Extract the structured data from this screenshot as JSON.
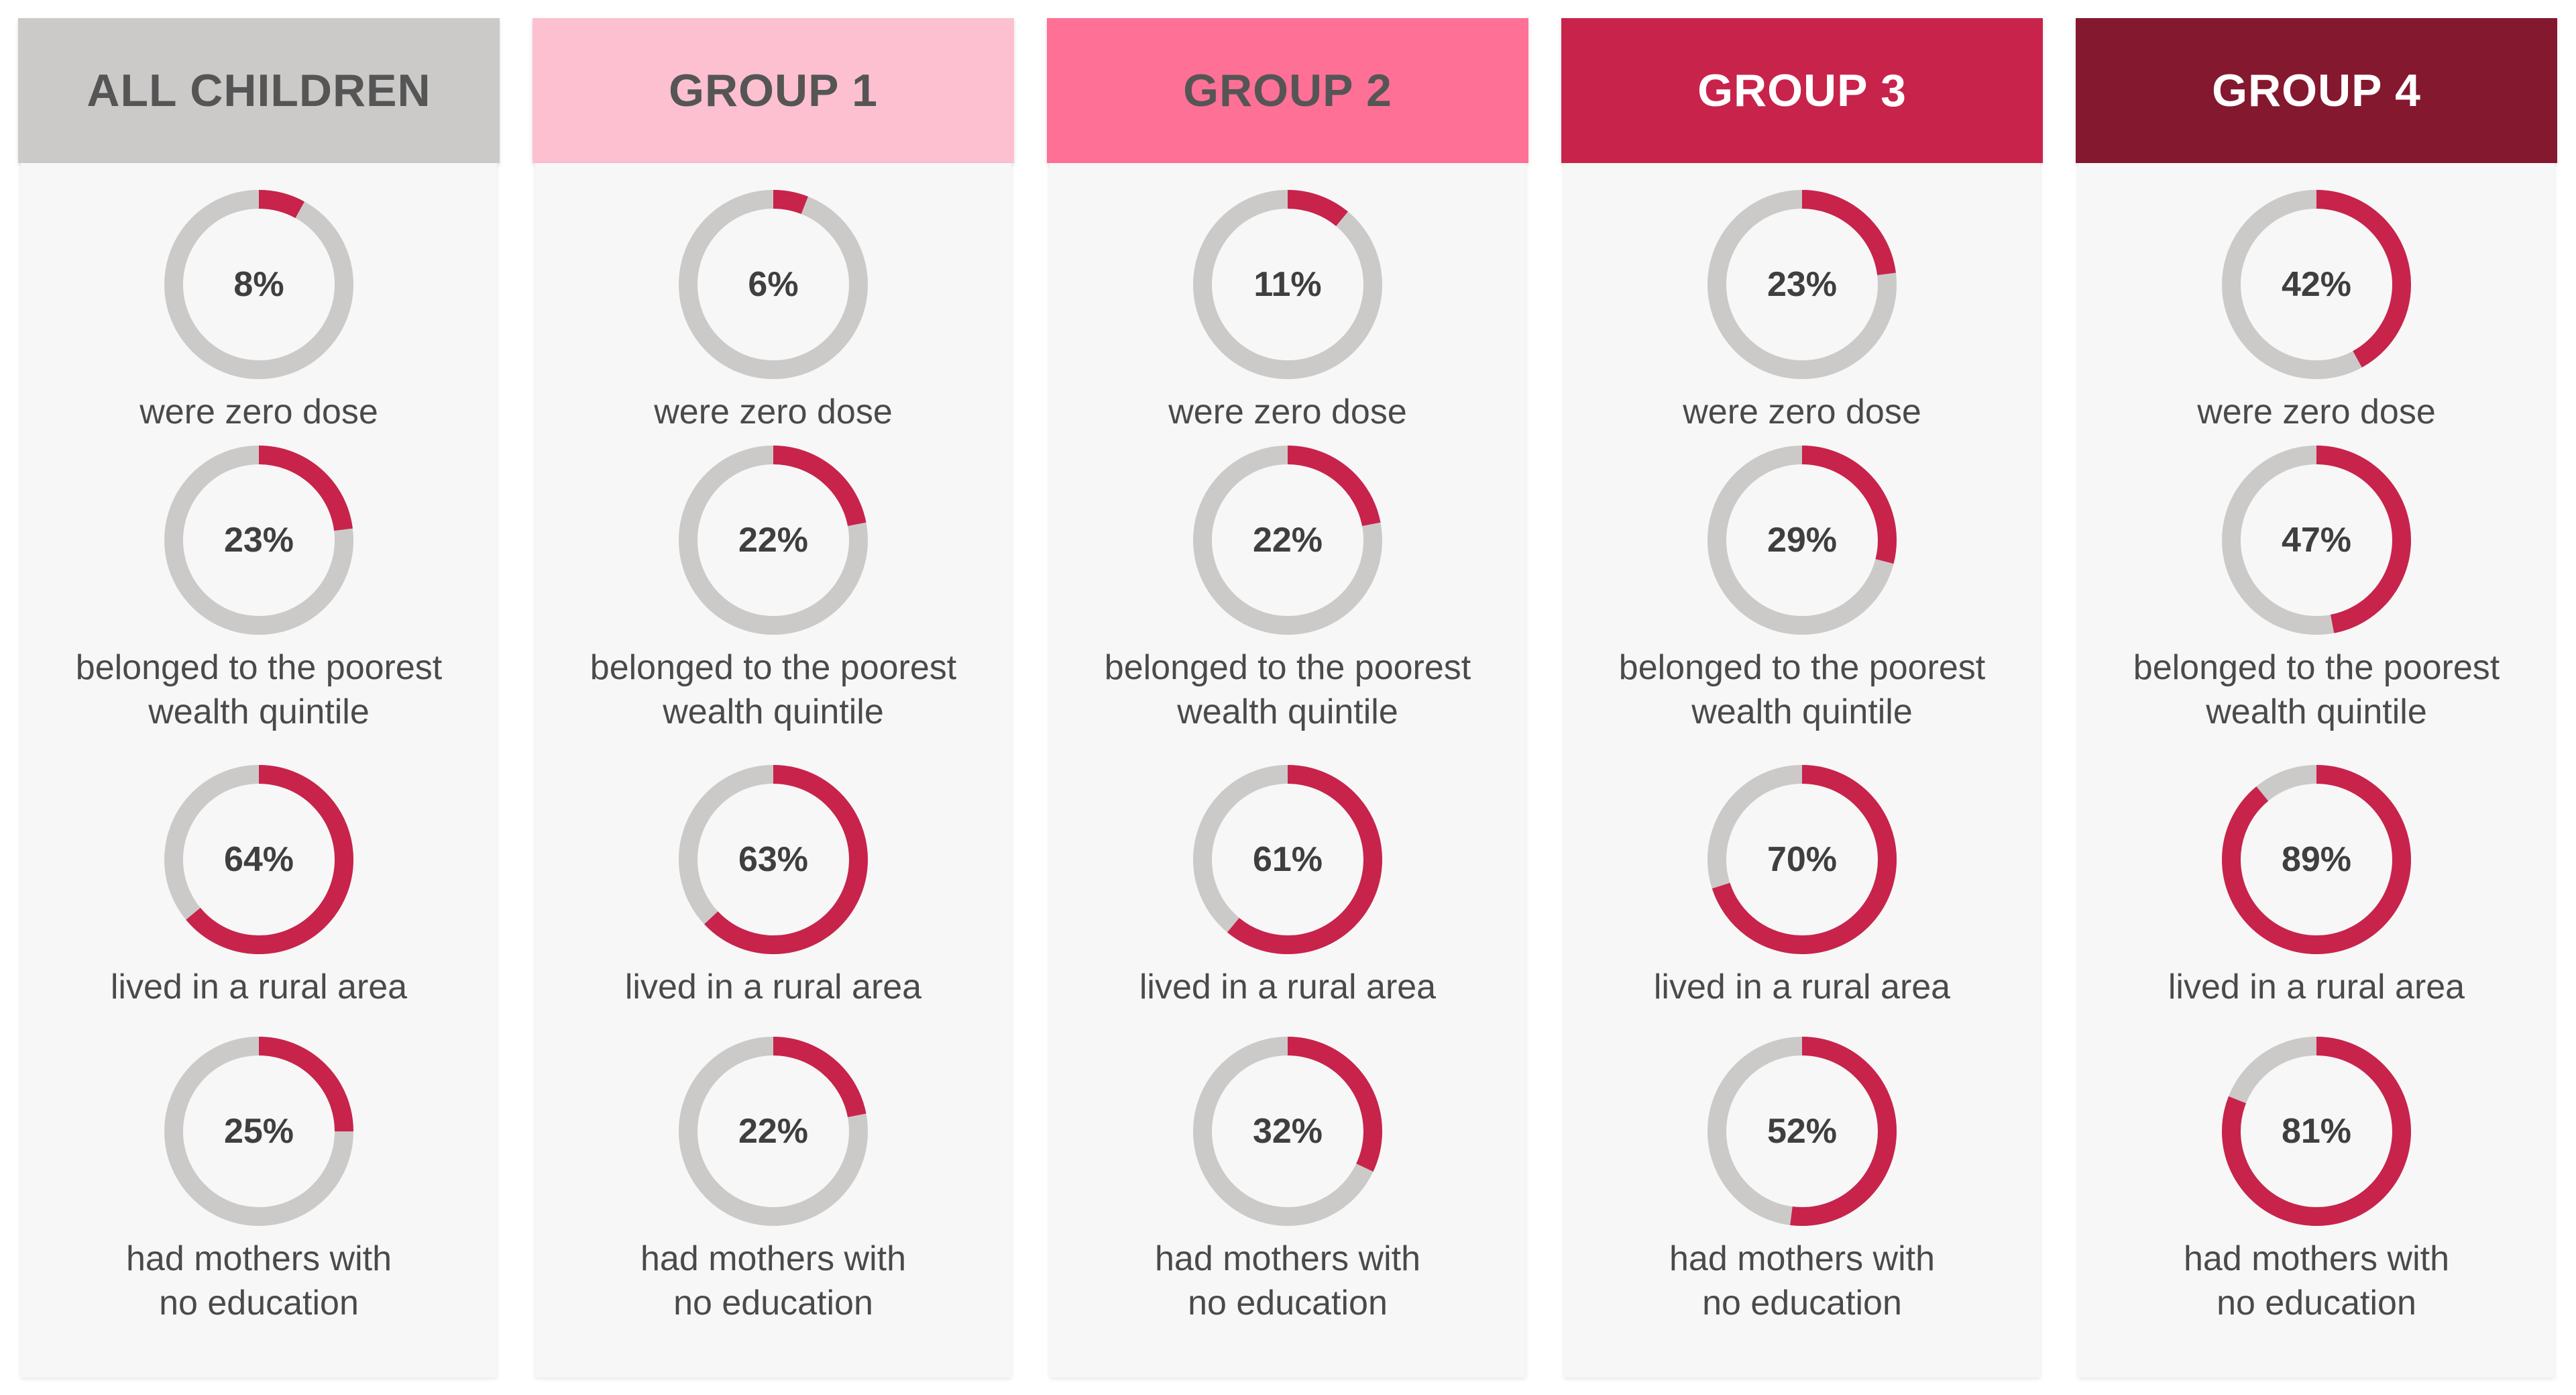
{
  "colors": {
    "track": "#cbcac9",
    "fill": "#c8234b",
    "text_dark": "#555555",
    "text_light": "#ffffff"
  },
  "metric_labels": {
    "zero_dose": "were zero dose",
    "poorest_line1": "belonged to the poorest",
    "poorest_line2": "wealth quintile",
    "rural": "lived in a rural area",
    "education_line1": "had mothers with",
    "education_line2": "no education"
  },
  "chart_data": {
    "type": "donut-grid",
    "series": [
      {
        "name": "ALL CHILDREN",
        "header_color": "#cbcac9",
        "header_text_color": "#555555",
        "values": {
          "zero_dose": 8,
          "poorest": 23,
          "rural": 64,
          "education": 25
        },
        "labels": {
          "zero_dose": "8%",
          "poorest": "23%",
          "rural": "64%",
          "education": "25%"
        }
      },
      {
        "name": "GROUP 1",
        "header_color": "#fcc0d1",
        "header_text_color": "#555555",
        "values": {
          "zero_dose": 6,
          "poorest": 22,
          "rural": 63,
          "education": 22
        },
        "labels": {
          "zero_dose": "6%",
          "poorest": "22%",
          "rural": "63%",
          "education": "22%"
        }
      },
      {
        "name": "GROUP 2",
        "header_color": "#ff7096",
        "header_text_color": "#555555",
        "values": {
          "zero_dose": 11,
          "poorest": 22,
          "rural": 61,
          "education": 32
        },
        "labels": {
          "zero_dose": "11%",
          "poorest": "22%",
          "rural": "61%",
          "education": "32%"
        }
      },
      {
        "name": "GROUP 3",
        "header_color": "#c8234b",
        "header_text_color": "#ffffff",
        "values": {
          "zero_dose": 23,
          "poorest": 29,
          "rural": 70,
          "education": 52
        },
        "labels": {
          "zero_dose": "23%",
          "poorest": "29%",
          "rural": "70%",
          "education": "52%"
        }
      },
      {
        "name": "GROUP 4",
        "header_color": "#84182f",
        "header_text_color": "#ffffff",
        "values": {
          "zero_dose": 42,
          "poorest": 47,
          "rural": 89,
          "education": 81
        },
        "labels": {
          "zero_dose": "42%",
          "poorest": "47%",
          "rural": "89%",
          "education": "81%"
        }
      }
    ]
  }
}
